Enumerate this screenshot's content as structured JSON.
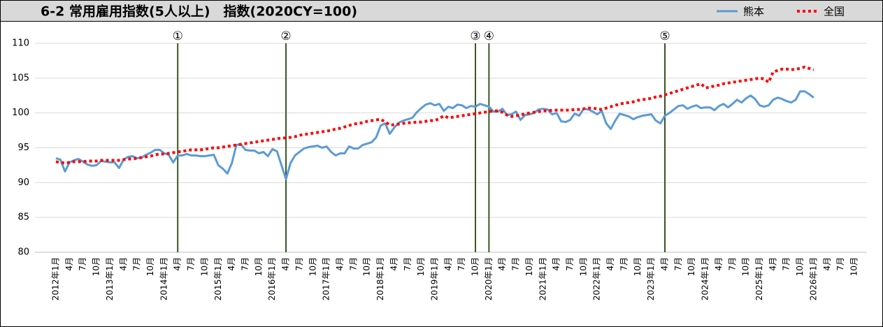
{
  "chart_data": {
    "type": "line",
    "title": "6-2 常用雇用指数(5人以上)　指数(2020CY=100)",
    "categories": [
      "2012年1月",
      null,
      null,
      "4月",
      null,
      null,
      "7月",
      null,
      null,
      "10月",
      null,
      null,
      "2013年1月",
      null,
      null,
      "4月",
      null,
      null,
      "7月",
      null,
      null,
      "10月",
      null,
      null,
      "2014年1月",
      null,
      null,
      "4月",
      null,
      null,
      "7月",
      null,
      null,
      "10月",
      null,
      null,
      "2015年1月",
      null,
      null,
      "4月",
      null,
      null,
      "7月",
      null,
      null,
      "10月",
      null,
      null,
      "2016年1月",
      null,
      null,
      "4月",
      null,
      null,
      "7月",
      null,
      null,
      "10月",
      null,
      null,
      "2017年1月",
      null,
      null,
      "4月",
      null,
      null,
      "7月",
      null,
      null,
      "10月",
      null,
      null,
      "2018年1月",
      null,
      null,
      "4月",
      null,
      null,
      "7月",
      null,
      null,
      "10月",
      null,
      null,
      "2019年1月",
      null,
      null,
      "4月",
      null,
      null,
      "7月",
      null,
      null,
      "10月",
      null,
      null,
      "2020年1月",
      null,
      null,
      "4月",
      null,
      null,
      "7月",
      null,
      null,
      "10月",
      null,
      null,
      "2021年1月",
      null,
      null,
      "4月",
      null,
      null,
      "7月",
      null,
      null,
      "10月",
      null,
      null,
      "2022年1月",
      null,
      null,
      "4月",
      null,
      null,
      "7月",
      null,
      null,
      "10月",
      null,
      null,
      "2023年1月",
      null,
      null,
      "4月",
      null,
      null,
      "7月",
      null,
      null,
      "10月",
      null,
      null,
      "2024年1月",
      null,
      null,
      "4月",
      null,
      null,
      "7月",
      null,
      null,
      "10月",
      null,
      null,
      "2025年1月",
      null,
      null,
      "4月",
      null,
      null,
      "7月",
      null,
      null,
      "10月",
      null,
      null,
      "2026年1月",
      null,
      null,
      "4月",
      null,
      null,
      "7月",
      null,
      null,
      "10月"
    ],
    "series": [
      {
        "name": "熊本",
        "color": "#5b9bd5",
        "style": "solid",
        "values": [
          93.5,
          93.3,
          91.6,
          92.9,
          93.2,
          93.4,
          93.0,
          92.6,
          92.4,
          92.5,
          93.1,
          93.0,
          92.9,
          92.9,
          92.1,
          93.3,
          93.7,
          93.8,
          93.5,
          93.6,
          94.0,
          94.3,
          94.7,
          94.7,
          94.2,
          94.0,
          92.9,
          93.9,
          93.9,
          94.1,
          93.9,
          93.9,
          93.8,
          93.8,
          93.9,
          94.0,
          92.5,
          92.0,
          91.3,
          92.8,
          95.4,
          95.5,
          94.7,
          94.6,
          94.6,
          94.2,
          94.4,
          93.8,
          94.8,
          94.5,
          92.5,
          90.5,
          92.8,
          93.9,
          94.4,
          94.9,
          95.1,
          95.2,
          95.3,
          95.0,
          95.2,
          94.4,
          93.9,
          94.2,
          94.2,
          95.2,
          94.9,
          94.9,
          95.4,
          95.6,
          95.8,
          96.5,
          98.2,
          98.5,
          97.0,
          97.9,
          98.6,
          98.9,
          99.1,
          99.3,
          100.1,
          100.7,
          101.2,
          101.4,
          101.1,
          101.3,
          100.3,
          100.9,
          100.7,
          101.2,
          101.1,
          100.7,
          101.0,
          100.9,
          101.3,
          101.1,
          100.9,
          100.2,
          100.2,
          100.6,
          99.7,
          99.8,
          100.2,
          99.0,
          99.7,
          99.8,
          100.0,
          100.5,
          100.6,
          100.5,
          99.8,
          100.0,
          98.8,
          98.7,
          99.0,
          99.9,
          99.6,
          100.6,
          100.5,
          100.2,
          99.8,
          100.3,
          98.5,
          97.7,
          98.9,
          99.9,
          99.7,
          99.5,
          99.1,
          99.4,
          99.6,
          99.7,
          99.8,
          98.9,
          98.5,
          99.6,
          100.0,
          100.5,
          101.0,
          101.1,
          100.6,
          100.9,
          101.1,
          100.7,
          100.8,
          100.8,
          100.4,
          101.0,
          101.3,
          100.8,
          101.3,
          101.9,
          101.5,
          102.1,
          102.5,
          102.0,
          101.1,
          100.9,
          101.1,
          101.9,
          102.2,
          102.0,
          101.7,
          101.5,
          101.9,
          103.1,
          103.1,
          102.7,
          102.2,
          null,
          null,
          null,
          null,
          null,
          null,
          null,
          null,
          null
        ]
      },
      {
        "name": "全国",
        "color": "#ff0000",
        "style": "dotted",
        "values": [
          93.0,
          92.9,
          92.8,
          92.9,
          93.0,
          93.0,
          93.0,
          93.1,
          93.1,
          93.1,
          93.2,
          93.2,
          93.2,
          93.2,
          93.2,
          93.3,
          93.4,
          93.4,
          93.5,
          93.6,
          93.7,
          93.8,
          94.0,
          94.1,
          94.1,
          94.2,
          94.3,
          94.4,
          94.5,
          94.6,
          94.7,
          94.7,
          94.7,
          94.8,
          94.9,
          95.0,
          95.0,
          95.1,
          95.2,
          95.3,
          95.4,
          95.5,
          95.6,
          95.7,
          95.8,
          95.9,
          96.0,
          96.1,
          96.2,
          96.3,
          96.4,
          96.4,
          96.5,
          96.6,
          96.8,
          96.9,
          97.0,
          97.1,
          97.2,
          97.3,
          97.4,
          97.5,
          97.7,
          97.8,
          98.0,
          98.2,
          98.4,
          98.5,
          98.6,
          98.8,
          98.9,
          99.0,
          99.1,
          98.7,
          98.3,
          98.3,
          98.4,
          98.5,
          98.6,
          98.6,
          98.7,
          98.7,
          98.8,
          98.9,
          98.9,
          99.2,
          99.6,
          99.3,
          99.4,
          99.5,
          99.6,
          99.7,
          99.8,
          99.9,
          100.0,
          100.1,
          100.2,
          100.3,
          100.3,
          100.1,
          99.7,
          99.5,
          99.6,
          99.7,
          99.9,
          100.0,
          100.1,
          100.2,
          100.3,
          100.3,
          100.4,
          100.4,
          100.4,
          100.4,
          100.4,
          100.5,
          100.5,
          100.6,
          100.7,
          100.7,
          100.6,
          100.5,
          100.7,
          100.9,
          101.1,
          101.3,
          101.4,
          101.5,
          101.6,
          101.8,
          101.9,
          102.0,
          102.1,
          102.3,
          102.4,
          102.6,
          102.8,
          103.0,
          103.2,
          103.4,
          103.6,
          103.8,
          104.0,
          104.2,
          103.6,
          103.7,
          103.9,
          104.0,
          104.2,
          104.3,
          104.4,
          104.5,
          104.6,
          104.7,
          104.8,
          104.9,
          105.0,
          104.9,
          104.4,
          105.9,
          106.1,
          106.3,
          106.3,
          106.2,
          106.3,
          106.4,
          106.6,
          106.4,
          106.2,
          null,
          null,
          null,
          null,
          null,
          null,
          null,
          null,
          null
        ]
      }
    ],
    "ylim": [
      80,
      110
    ],
    "yticks": [
      80,
      85,
      90,
      95,
      100,
      105,
      110
    ],
    "grid": true,
    "legend": "top-right",
    "annotations": [
      {
        "label": "①",
        "index": 27,
        "color": "#375623"
      },
      {
        "label": "②",
        "index": 51,
        "color": "#375623"
      },
      {
        "label": "③",
        "index": 93,
        "color": "#375623"
      },
      {
        "label": "④",
        "index": 96,
        "color": "#375623"
      },
      {
        "label": "⑤",
        "index": 135,
        "color": "#375623"
      }
    ]
  }
}
